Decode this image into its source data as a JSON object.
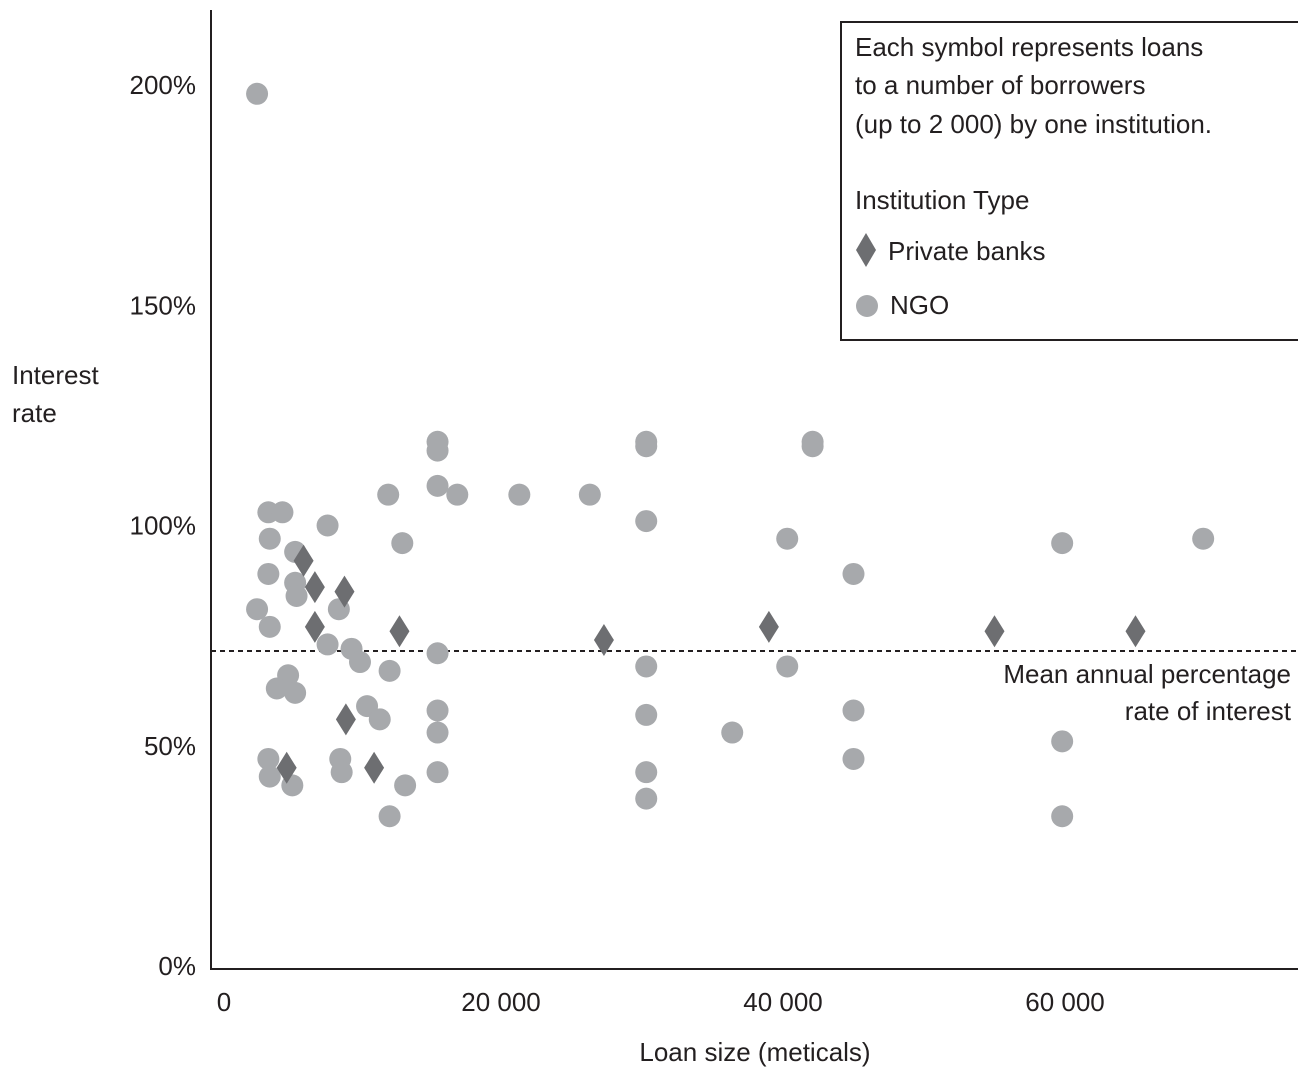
{
  "chart_data": {
    "type": "scatter",
    "ylabel_lines": [
      "Interest",
      "rate"
    ],
    "xlabel": "Loan size (meticals)",
    "x_ticks": [
      {
        "value": 0,
        "label": "0"
      },
      {
        "value": 20000,
        "label": "20 000"
      },
      {
        "value": 40000,
        "label": "40 000"
      },
      {
        "value": 60000,
        "label": "60 000"
      }
    ],
    "y_ticks": [
      {
        "value": 0,
        "label": "0%"
      },
      {
        "value": 50,
        "label": "50%"
      },
      {
        "value": 100,
        "label": "100%"
      },
      {
        "value": 150,
        "label": "150%"
      },
      {
        "value": 200,
        "label": "200%"
      }
    ],
    "xlim": [
      0,
      76500
    ],
    "ylim": [
      0,
      217
    ],
    "legend": {
      "note_lines": [
        "Each symbol represents loans",
        "to a number of borrowers",
        "(up to 2 000) by one institution."
      ],
      "heading": "Institution Type",
      "placement": "top-right"
    },
    "mean_line": {
      "value": 71.5,
      "label_lines": [
        "Mean annual percentage",
        "rate of interest"
      ]
    },
    "series": [
      {
        "name": "Private banks",
        "marker": "diamond",
        "color": "#6d6e71",
        "points": [
          [
            6000,
            92
          ],
          [
            6800,
            86
          ],
          [
            8900,
            85
          ],
          [
            6800,
            77
          ],
          [
            12800,
            76
          ],
          [
            27300,
            74
          ],
          [
            39000,
            77
          ],
          [
            55000,
            76
          ],
          [
            65000,
            76
          ],
          [
            9000,
            56
          ],
          [
            4800,
            45
          ],
          [
            11000,
            45
          ]
        ]
      },
      {
        "name": "NGO",
        "marker": "circle",
        "color": "#a7a9ac",
        "points": [
          [
            2700,
            198
          ],
          [
            3500,
            103
          ],
          [
            4500,
            103
          ],
          [
            7700,
            100
          ],
          [
            3600,
            97
          ],
          [
            5400,
            94
          ],
          [
            3500,
            89
          ],
          [
            5400,
            87
          ],
          [
            5500,
            84
          ],
          [
            2700,
            81
          ],
          [
            8500,
            81
          ],
          [
            3600,
            77
          ],
          [
            7700,
            73
          ],
          [
            9400,
            72
          ],
          [
            10000,
            69
          ],
          [
            4900,
            66
          ],
          [
            4100,
            63
          ],
          [
            5400,
            62
          ],
          [
            10500,
            59
          ],
          [
            11400,
            56
          ],
          [
            3500,
            47
          ],
          [
            8600,
            47
          ],
          [
            3600,
            43
          ],
          [
            5200,
            41
          ],
          [
            8700,
            44
          ],
          [
            12000,
            107
          ],
          [
            13000,
            96
          ],
          [
            12100,
            67
          ],
          [
            13200,
            41
          ],
          [
            12100,
            34
          ],
          [
            15500,
            119
          ],
          [
            15500,
            117
          ],
          [
            15500,
            109
          ],
          [
            16900,
            107
          ],
          [
            15500,
            71
          ],
          [
            15500,
            58
          ],
          [
            15500,
            53
          ],
          [
            15500,
            44
          ],
          [
            21300,
            107
          ],
          [
            26300,
            107
          ],
          [
            30300,
            119
          ],
          [
            30300,
            118
          ],
          [
            30300,
            101
          ],
          [
            30300,
            68
          ],
          [
            30300,
            57
          ],
          [
            30300,
            44
          ],
          [
            30300,
            38
          ],
          [
            36400,
            53
          ],
          [
            40300,
            97
          ],
          [
            40300,
            68
          ],
          [
            42100,
            119
          ],
          [
            42100,
            118
          ],
          [
            45000,
            89
          ],
          [
            45000,
            58
          ],
          [
            45000,
            47
          ],
          [
            59800,
            96
          ],
          [
            59800,
            51
          ],
          [
            59800,
            34
          ],
          [
            69800,
            97
          ]
        ]
      }
    ]
  }
}
